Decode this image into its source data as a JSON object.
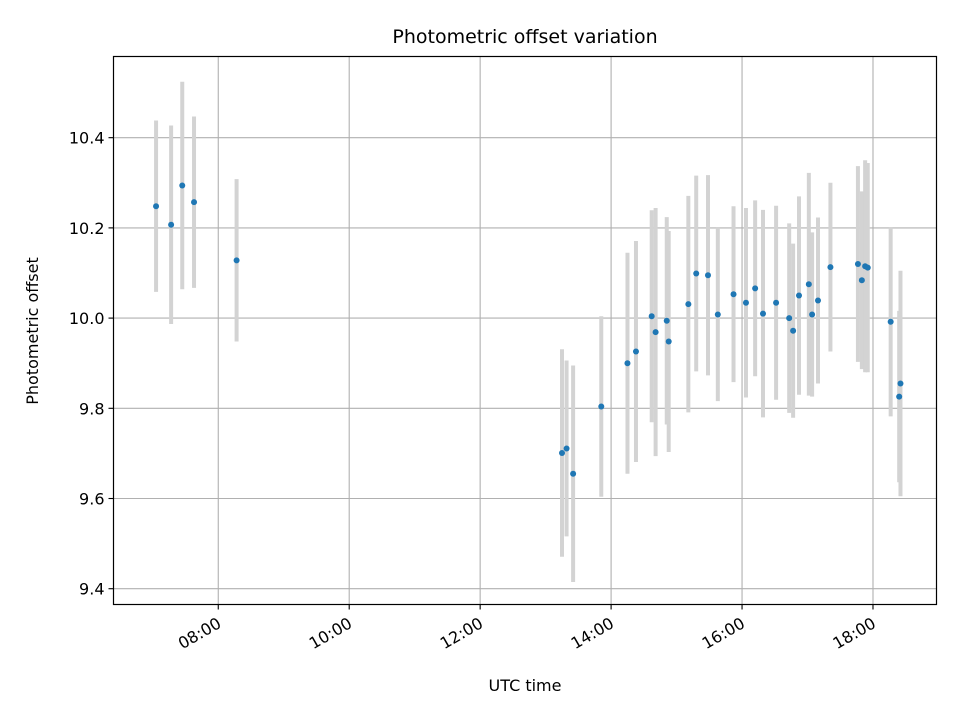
{
  "chart_data": {
    "type": "scatter",
    "title": "Photometric offset variation",
    "xlabel": "UTC time",
    "ylabel": "Photometric offset",
    "x_unit": "hours UTC",
    "xlim": [
      6.4,
      18.97
    ],
    "ylim": [
      9.365,
      10.58
    ],
    "x_ticks": [
      {
        "value": 8,
        "label": "08:00"
      },
      {
        "value": 10,
        "label": "10:00"
      },
      {
        "value": 12,
        "label": "12:00"
      },
      {
        "value": 14,
        "label": "14:00"
      },
      {
        "value": 16,
        "label": "16:00"
      },
      {
        "value": 18,
        "label": "18:00"
      }
    ],
    "y_ticks": [
      {
        "value": 9.4,
        "label": "9.4"
      },
      {
        "value": 9.6,
        "label": "9.6"
      },
      {
        "value": 9.8,
        "label": "9.8"
      },
      {
        "value": 10.0,
        "label": "10.0"
      },
      {
        "value": 10.2,
        "label": "10.2"
      },
      {
        "value": 10.4,
        "label": "10.4"
      }
    ],
    "grid": true,
    "marker_color": "#1f77b4",
    "errorbar_color": "#d3d3d3",
    "points": [
      {
        "x": 7.05,
        "y": 10.248,
        "err": 0.19
      },
      {
        "x": 7.28,
        "y": 10.207,
        "err": 0.22
      },
      {
        "x": 7.45,
        "y": 10.294,
        "err": 0.23
      },
      {
        "x": 7.63,
        "y": 10.257,
        "err": 0.19
      },
      {
        "x": 8.28,
        "y": 10.128,
        "err": 0.18
      },
      {
        "x": 13.25,
        "y": 9.701,
        "err": 0.23
      },
      {
        "x": 13.32,
        "y": 9.711,
        "err": 0.195
      },
      {
        "x": 13.42,
        "y": 9.655,
        "err": 0.24
      },
      {
        "x": 13.85,
        "y": 9.804,
        "err": 0.2
      },
      {
        "x": 14.25,
        "y": 9.9,
        "err": 0.245
      },
      {
        "x": 14.38,
        "y": 9.926,
        "err": 0.245
      },
      {
        "x": 14.62,
        "y": 10.004,
        "err": 0.235
      },
      {
        "x": 14.68,
        "y": 9.969,
        "err": 0.275
      },
      {
        "x": 14.85,
        "y": 9.994,
        "err": 0.23
      },
      {
        "x": 14.88,
        "y": 9.948,
        "err": 0.245
      },
      {
        "x": 15.18,
        "y": 10.031,
        "err": 0.24
      },
      {
        "x": 15.3,
        "y": 10.099,
        "err": 0.217
      },
      {
        "x": 15.48,
        "y": 10.095,
        "err": 0.222
      },
      {
        "x": 15.63,
        "y": 10.008,
        "err": 0.192
      },
      {
        "x": 15.87,
        "y": 10.053,
        "err": 0.195
      },
      {
        "x": 16.06,
        "y": 10.034,
        "err": 0.21
      },
      {
        "x": 16.2,
        "y": 10.066,
        "err": 0.195
      },
      {
        "x": 16.32,
        "y": 10.01,
        "err": 0.23
      },
      {
        "x": 16.52,
        "y": 10.034,
        "err": 0.215
      },
      {
        "x": 16.72,
        "y": 10.0,
        "err": 0.21
      },
      {
        "x": 16.78,
        "y": 9.972,
        "err": 0.193
      },
      {
        "x": 16.87,
        "y": 10.05,
        "err": 0.22
      },
      {
        "x": 17.02,
        "y": 10.075,
        "err": 0.247
      },
      {
        "x": 17.07,
        "y": 10.008,
        "err": 0.182
      },
      {
        "x": 17.16,
        "y": 10.039,
        "err": 0.184
      },
      {
        "x": 17.35,
        "y": 10.113,
        "err": 0.187
      },
      {
        "x": 17.77,
        "y": 10.12,
        "err": 0.217
      },
      {
        "x": 17.83,
        "y": 10.084,
        "err": 0.197
      },
      {
        "x": 17.88,
        "y": 10.115,
        "err": 0.235
      },
      {
        "x": 17.92,
        "y": 10.112,
        "err": 0.232
      },
      {
        "x": 18.27,
        "y": 9.992,
        "err": 0.21
      },
      {
        "x": 18.4,
        "y": 9.826,
        "err": 0.19
      },
      {
        "x": 18.42,
        "y": 9.855,
        "err": 0.25
      }
    ]
  }
}
